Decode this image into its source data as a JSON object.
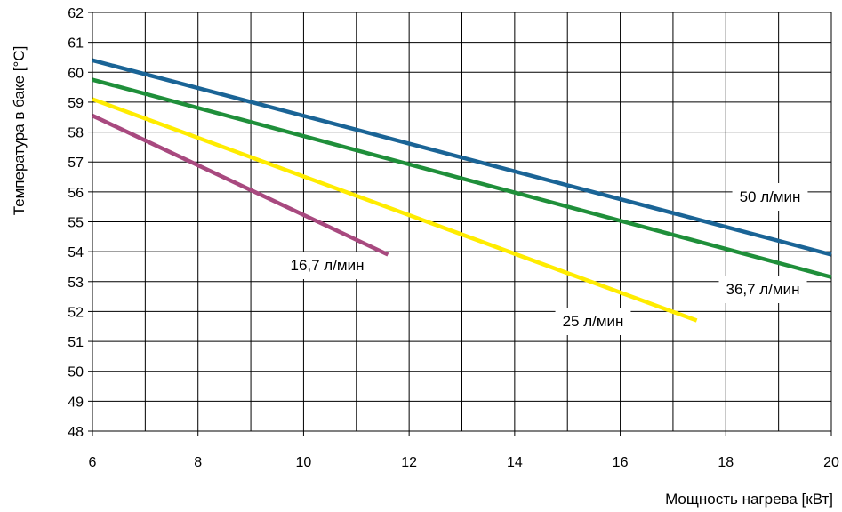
{
  "chart_data": {
    "type": "line",
    "title": "",
    "xlabel": "Мощность нагрева [кВт]",
    "ylabel": "Температура в баке [°C]",
    "xlim": [
      6,
      20
    ],
    "ylim": [
      48,
      62
    ],
    "xticks": [
      6,
      8,
      10,
      12,
      14,
      16,
      18,
      20
    ],
    "yticks": [
      48,
      49,
      50,
      51,
      52,
      53,
      54,
      55,
      56,
      57,
      58,
      59,
      60,
      61,
      62
    ],
    "x_minor_step": 1,
    "grid": true,
    "legend": "none",
    "series": [
      {
        "name": "50 л/мин",
        "color": "#1a6496",
        "points": [
          [
            6,
            60.4
          ],
          [
            20,
            53.9
          ]
        ]
      },
      {
        "name": "36,7 л/мин",
        "color": "#1f8f3a",
        "points": [
          [
            6,
            59.75
          ],
          [
            20,
            53.15
          ]
        ]
      },
      {
        "name": "25 л/мин",
        "color": "#ffec00",
        "points": [
          [
            6,
            59.1
          ],
          [
            17.45,
            51.7
          ]
        ]
      },
      {
        "name": "16,7 л/мин",
        "color": "#a8497f",
        "points": [
          [
            6,
            58.55
          ],
          [
            11.6,
            53.9
          ]
        ]
      }
    ]
  }
}
